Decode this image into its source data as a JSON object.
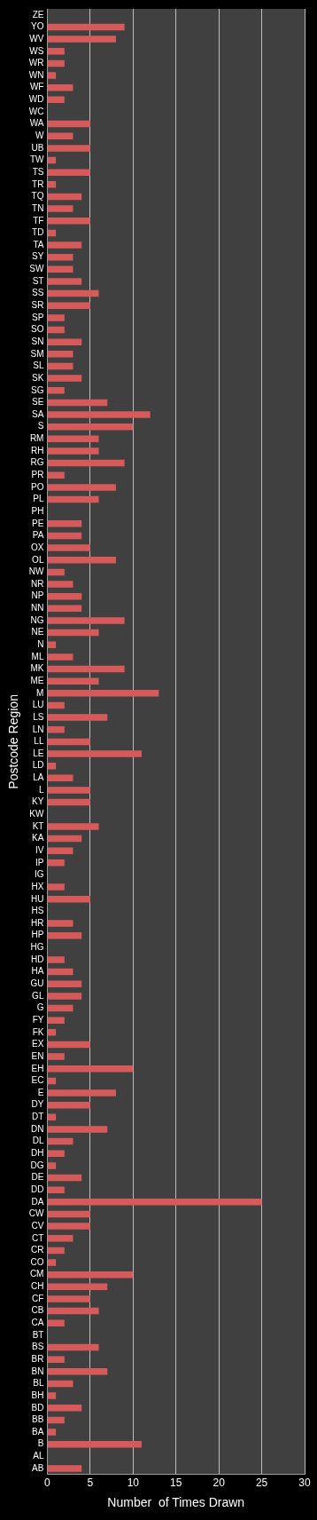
{
  "chart_data": {
    "type": "bar",
    "orientation": "horizontal",
    "xlabel": "Number  of Times Drawn",
    "ylabel": "Postcode Region",
    "categories": [
      "ZE",
      "YO",
      "WV",
      "WS",
      "WR",
      "WN",
      "WF",
      "WD",
      "WC",
      "WA",
      "W",
      "UB",
      "TW",
      "TS",
      "TR",
      "TQ",
      "TN",
      "TF",
      "TD",
      "TA",
      "SY",
      "SW",
      "ST",
      "SS",
      "SR",
      "SP",
      "SO",
      "SN",
      "SM",
      "SL",
      "SK",
      "SG",
      "SE",
      "SA",
      "S",
      "RM",
      "RH",
      "RG",
      "PR",
      "PO",
      "PL",
      "PH",
      "PE",
      "PA",
      "OX",
      "OL",
      "NW",
      "NR",
      "NP",
      "NN",
      "NG",
      "NE",
      "N",
      "ML",
      "MK",
      "ME",
      "M",
      "LU",
      "LS",
      "LN",
      "LL",
      "LE",
      "LD",
      "LA",
      "L",
      "KY",
      "KW",
      "KT",
      "KA",
      "IV",
      "IP",
      "IG",
      "HX",
      "HU",
      "HS",
      "HR",
      "HP",
      "HG",
      "HD",
      "HA",
      "GU",
      "GL",
      "G",
      "FY",
      "FK",
      "EX",
      "EN",
      "EH",
      "EC",
      "E",
      "DY",
      "DT",
      "DN",
      "DL",
      "DH",
      "DG",
      "DE",
      "DD",
      "DA",
      "CW",
      "CV",
      "CT",
      "CR",
      "CO",
      "CM",
      "CH",
      "CF",
      "CB",
      "CA",
      "BT",
      "BS",
      "BR",
      "BN",
      "BL",
      "BH",
      "BD",
      "BB",
      "BA",
      "B",
      "AL",
      "AB"
    ],
    "values": [
      0,
      9,
      8,
      2,
      2,
      1,
      3,
      2,
      0,
      5,
      3,
      5,
      1,
      5,
      1,
      4,
      3,
      5,
      1,
      4,
      3,
      3,
      4,
      6,
      5,
      2,
      2,
      4,
      3,
      3,
      4,
      2,
      7,
      12,
      10,
      6,
      6,
      9,
      2,
      8,
      6,
      0,
      4,
      4,
      5,
      8,
      2,
      3,
      4,
      4,
      9,
      6,
      1,
      3,
      9,
      6,
      13,
      2,
      7,
      2,
      5,
      11,
      1,
      3,
      5,
      5,
      0,
      6,
      4,
      3,
      2,
      0,
      2,
      5,
      0,
      3,
      4,
      0,
      2,
      3,
      4,
      4,
      3,
      2,
      1,
      5,
      2,
      10,
      1,
      8,
      5,
      1,
      7,
      3,
      2,
      1,
      4,
      2,
      25,
      5,
      5,
      3,
      2,
      1,
      10,
      7,
      5,
      6,
      2,
      0,
      6,
      2,
      7,
      3,
      1,
      4,
      2,
      1,
      11,
      0,
      4
    ],
    "color": "#d65a5a",
    "xlim": [
      0,
      30
    ],
    "xticks": [
      0,
      5,
      10,
      15,
      20,
      25,
      30
    ],
    "grid": "x"
  }
}
